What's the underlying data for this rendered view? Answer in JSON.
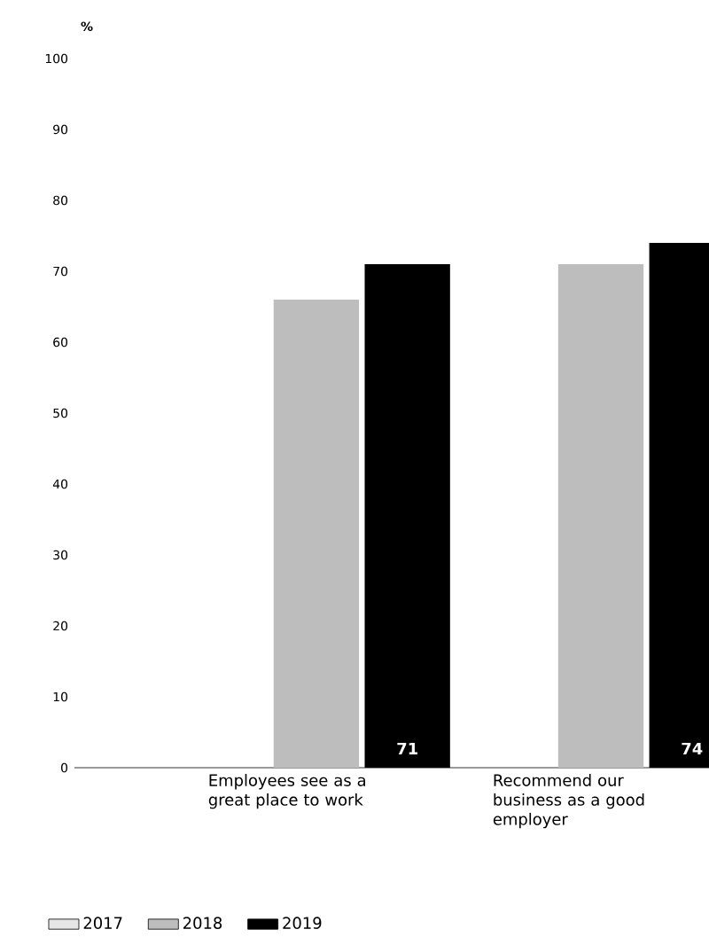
{
  "chart_data": {
    "type": "bar",
    "ylabel": "%",
    "categories": [
      "Employees see as a great place to work",
      "Recommend our business as a good employer"
    ],
    "series": [
      {
        "name": "2017",
        "color": "#e6e6e6",
        "values": [
          null,
          null
        ]
      },
      {
        "name": "2018",
        "color": "#bdbdbd",
        "values": [
          66,
          71
        ]
      },
      {
        "name": "2019",
        "color": "#000000",
        "values": [
          71,
          74
        ],
        "value_labels": [
          "71",
          "74"
        ]
      }
    ],
    "ylim": [
      0,
      100
    ],
    "yticks": [
      0,
      10,
      20,
      30,
      40,
      50,
      60,
      70,
      80,
      90,
      100
    ],
    "legend": "bottom left"
  }
}
